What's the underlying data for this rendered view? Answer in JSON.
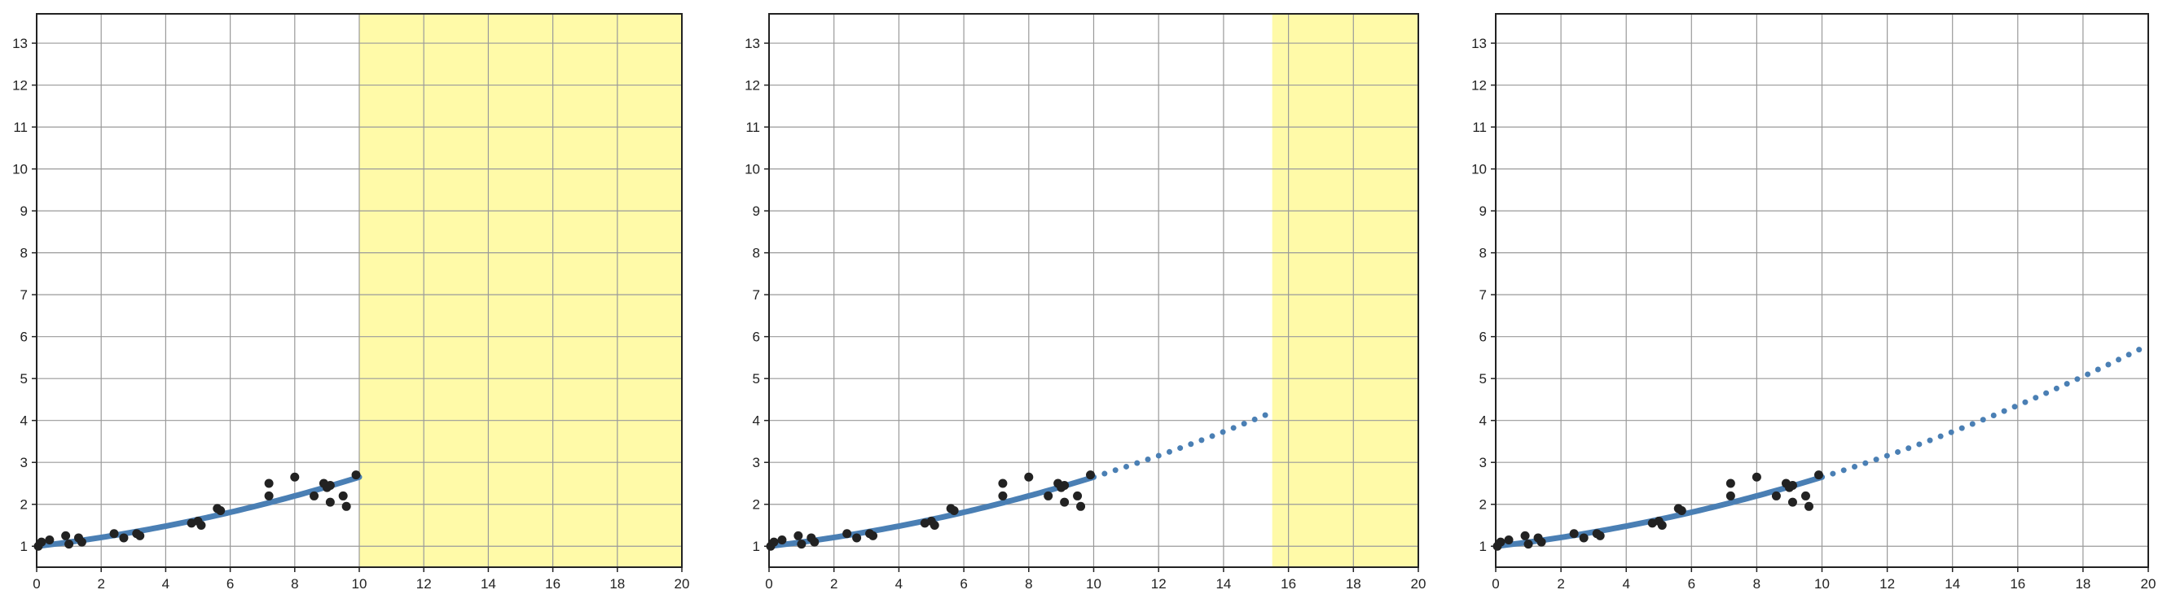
{
  "chart_data": [
    {
      "type": "scatter",
      "title": "",
      "xlabel": "",
      "ylabel": "",
      "xlim": [
        0,
        20
      ],
      "ylim": [
        0.5,
        13.7
      ],
      "x_ticks": [
        0,
        2,
        4,
        6,
        8,
        10,
        12,
        14,
        16,
        18,
        20
      ],
      "y_ticks": [
        1,
        2,
        3,
        4,
        5,
        6,
        7,
        8,
        9,
        10,
        11,
        12,
        13
      ],
      "grid": true,
      "highlight_region": {
        "x_from": 10,
        "x_to": 20,
        "color": "#fffaa8"
      },
      "fit_curve": {
        "equation": "y = 0.0075x^2 + 0.09x + 1",
        "solid_range": [
          0,
          10
        ],
        "dotted_range": null,
        "color": "#4a7fb4"
      },
      "points": {
        "x": [
          0.05,
          0.15,
          0.4,
          0.9,
          1.0,
          1.3,
          1.4,
          2.4,
          2.7,
          3.1,
          3.2,
          4.8,
          5.0,
          5.1,
          5.6,
          5.7,
          7.2,
          7.2,
          8.0,
          8.6,
          8.9,
          9.0,
          9.1,
          9.1,
          9.5,
          9.6,
          9.9
        ],
        "y": [
          1.0,
          1.1,
          1.15,
          1.25,
          1.05,
          1.2,
          1.1,
          1.3,
          1.2,
          1.3,
          1.25,
          1.55,
          1.6,
          1.5,
          1.9,
          1.85,
          2.5,
          2.2,
          2.65,
          2.2,
          2.5,
          2.4,
          2.05,
          2.45,
          2.2,
          1.95,
          2.7
        ],
        "color": "#222222"
      }
    },
    {
      "type": "scatter",
      "title": "",
      "xlabel": "",
      "ylabel": "",
      "xlim": [
        0,
        20
      ],
      "ylim": [
        0.5,
        13.7
      ],
      "x_ticks": [
        0,
        2,
        4,
        6,
        8,
        10,
        12,
        14,
        16,
        18,
        20
      ],
      "y_ticks": [
        1,
        2,
        3,
        4,
        5,
        6,
        7,
        8,
        9,
        10,
        11,
        12,
        13
      ],
      "grid": true,
      "highlight_region": {
        "x_from": 15.5,
        "x_to": 20,
        "color": "#fffaa8"
      },
      "fit_curve": {
        "equation": "y = 0.0075x^2 + 0.09x + 1",
        "solid_range": [
          0,
          10
        ],
        "dotted_range": [
          10,
          15.5
        ],
        "color": "#4a7fb4"
      },
      "points": {
        "x": [
          0.05,
          0.15,
          0.4,
          0.9,
          1.0,
          1.3,
          1.4,
          2.4,
          2.7,
          3.1,
          3.2,
          4.8,
          5.0,
          5.1,
          5.6,
          5.7,
          7.2,
          7.2,
          8.0,
          8.6,
          8.9,
          9.0,
          9.1,
          9.1,
          9.5,
          9.6,
          9.9
        ],
        "y": [
          1.0,
          1.1,
          1.15,
          1.25,
          1.05,
          1.2,
          1.1,
          1.3,
          1.2,
          1.3,
          1.25,
          1.55,
          1.6,
          1.5,
          1.9,
          1.85,
          2.5,
          2.2,
          2.65,
          2.2,
          2.5,
          2.4,
          2.05,
          2.45,
          2.2,
          1.95,
          2.7
        ],
        "color": "#222222"
      }
    },
    {
      "type": "scatter",
      "title": "",
      "xlabel": "",
      "ylabel": "",
      "xlim": [
        0,
        20
      ],
      "ylim": [
        0.5,
        13.7
      ],
      "x_ticks": [
        0,
        2,
        4,
        6,
        8,
        10,
        12,
        14,
        16,
        18,
        20
      ],
      "y_ticks": [
        1,
        2,
        3,
        4,
        5,
        6,
        7,
        8,
        9,
        10,
        11,
        12,
        13
      ],
      "grid": true,
      "highlight_region": null,
      "fit_curve": {
        "equation": "y = 0.0075x^2 + 0.09x + 1",
        "solid_range": [
          0,
          10
        ],
        "dotted_range": [
          10,
          20
        ],
        "color": "#4a7fb4"
      },
      "points": {
        "x": [
          0.05,
          0.15,
          0.4,
          0.9,
          1.0,
          1.3,
          1.4,
          2.4,
          2.7,
          3.1,
          3.2,
          4.8,
          5.0,
          5.1,
          5.6,
          5.7,
          7.2,
          7.2,
          8.0,
          8.6,
          8.9,
          9.0,
          9.1,
          9.1,
          9.5,
          9.6,
          9.9
        ],
        "y": [
          1.0,
          1.1,
          1.15,
          1.25,
          1.05,
          1.2,
          1.1,
          1.3,
          1.2,
          1.3,
          1.25,
          1.55,
          1.6,
          1.5,
          1.9,
          1.85,
          2.5,
          2.2,
          2.65,
          2.2,
          2.5,
          2.4,
          2.05,
          2.45,
          2.2,
          1.95,
          2.7
        ],
        "color": "#222222"
      }
    }
  ]
}
